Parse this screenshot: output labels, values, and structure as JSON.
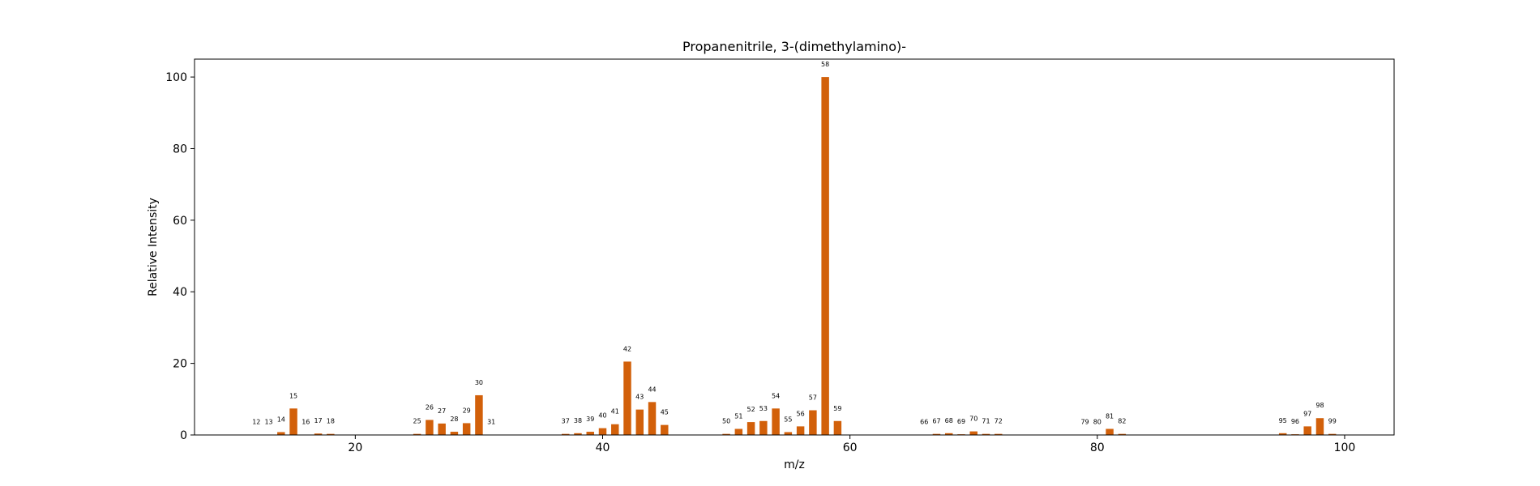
{
  "chart_data": {
    "type": "bar",
    "title": "Propanenitrile, 3-(dimethylamino)-",
    "xlabel": "m/z",
    "ylabel": "Relative Intensity",
    "xlim": [
      7,
      104
    ],
    "ylim": [
      0,
      105
    ],
    "x_ticks": [
      20,
      40,
      60,
      80,
      100
    ],
    "y_ticks": [
      0,
      20,
      40,
      60,
      80,
      100
    ],
    "grid": false,
    "bar_color": "#d2600a",
    "x": [
      12,
      13,
      14,
      15,
      16,
      17,
      18,
      25,
      26,
      27,
      28,
      29,
      30,
      31,
      37,
      38,
      39,
      40,
      41,
      42,
      43,
      44,
      45,
      50,
      51,
      52,
      53,
      54,
      55,
      56,
      57,
      58,
      59,
      66,
      67,
      68,
      69,
      70,
      71,
      72,
      79,
      80,
      81,
      82,
      95,
      96,
      97,
      98,
      99
    ],
    "values": [
      0.1,
      0.1,
      0.8,
      7.4,
      0.1,
      0.4,
      0.3,
      0.3,
      4.2,
      3.2,
      0.9,
      3.3,
      11.1,
      0.1,
      0.3,
      0.5,
      0.9,
      1.9,
      3.0,
      20.5,
      7.1,
      9.2,
      2.8,
      0.3,
      1.7,
      3.6,
      3.9,
      7.4,
      0.8,
      2.4,
      6.9,
      100.0,
      3.9,
      0.1,
      0.3,
      0.5,
      0.2,
      1.0,
      0.3,
      0.3,
      0.1,
      0.1,
      1.7,
      0.3,
      0.5,
      0.2,
      2.4,
      4.7,
      0.3
    ]
  }
}
